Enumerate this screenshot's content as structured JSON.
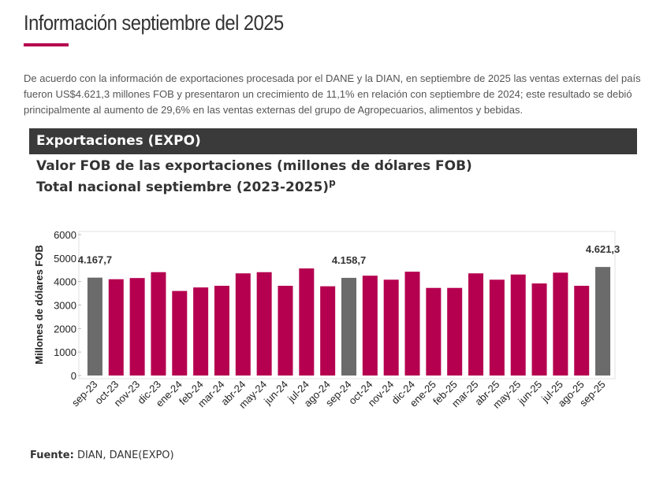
{
  "header": {
    "title": "Información septiembre del 2025"
  },
  "intro": "De acuerdo con la información de exportaciones procesada por el DANE y la DIAN, en septiembre de 2025 las ventas externas del país fueron US$4.621,3 millones FOB y presentaron un crecimiento de 11,1% en relación con septiembre de 2024; este resultado se debió principalmente al aumento de 29,6% en las ventas externas del grupo de Agropecuarios, alimentos y bebidas.",
  "section_title": "Exportaciones (EXPO)",
  "chart_data": {
    "type": "bar",
    "title": "Valor FOB de las exportaciones (millones de dólares FOB)",
    "subtitle": "Total nacional septiembre (2023-2025)",
    "subtitle_note": "p",
    "y_label": "Millones de dólares FOB",
    "categories": [
      "sep-23",
      "oct-23",
      "nov-23",
      "dic-23",
      "ene-24",
      "feb-24",
      "mar-24",
      "abr-24",
      "may-24",
      "jun-24",
      "jul-24",
      "ago-24",
      "sep-24",
      "oct-24",
      "nov-24",
      "dic-24",
      "ene-25",
      "feb-25",
      "mar-25",
      "abr-25",
      "may-25",
      "jun-25",
      "jul-25",
      "ago-25",
      "sep-25"
    ],
    "values": [
      4167.7,
      4100,
      4150,
      4400,
      3600,
      3750,
      3820,
      4350,
      4400,
      3820,
      4560,
      3800,
      4158.7,
      4250,
      4080,
      4420,
      3730,
      3730,
      4350,
      4080,
      4300,
      3920,
      4380,
      3820,
      4621.3
    ],
    "value_labels": [
      "4.167,7",
      null,
      null,
      null,
      null,
      null,
      null,
      null,
      null,
      null,
      null,
      null,
      "4.158,7",
      null,
      null,
      null,
      null,
      null,
      null,
      null,
      null,
      null,
      null,
      null,
      "4.621,3"
    ],
    "colors": [
      "#6b6b6b",
      "#b5004f",
      "#b5004f",
      "#b5004f",
      "#b5004f",
      "#b5004f",
      "#b5004f",
      "#b5004f",
      "#b5004f",
      "#b5004f",
      "#b5004f",
      "#b5004f",
      "#6b6b6b",
      "#b5004f",
      "#b5004f",
      "#b5004f",
      "#b5004f",
      "#b5004f",
      "#b5004f",
      "#b5004f",
      "#b5004f",
      "#b5004f",
      "#b5004f",
      "#b5004f",
      "#6b6b6b"
    ],
    "ylim": [
      0,
      6000
    ],
    "yticks": [
      0,
      1000,
      2000,
      3000,
      4000,
      5000,
      6000
    ],
    "grid": false
  },
  "source": {
    "label": "Fuente:",
    "text": "DIAN, DANE(EXPO)"
  }
}
